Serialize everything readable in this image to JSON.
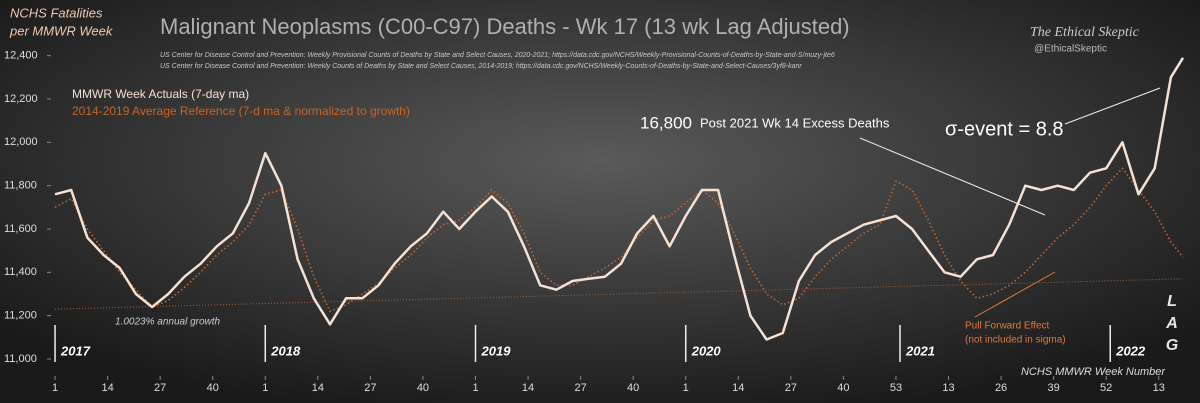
{
  "chart_data": {
    "type": "line",
    "title": "Malignant Neoplasms (C00-C97) Deaths - Wk 17 (13 wk Lag Adjusted)",
    "y_title": [
      "NCHS Fatalities",
      "per MMWR Week"
    ],
    "x_title": "NCHS MMWR Week Number",
    "sources": [
      "US Center for Disease Control and Prevention: Weekly  Provisional Counts of Deaths by State and Select Causes, 2020-2021; https://data.cdc.gov/NCHS/Weekly-Provisional-Counts-of-Deaths-by-State-and-S/muzy-jte6",
      "US Center for Disease Control and Prevention: Weekly  Counts of Deaths by State and Select Causes, 2014-2019; https://data.cdc.gov/NCHS/Weekly-Counts-of-Deaths-by-State-and-Select-Causes/3yf8-kanr"
    ],
    "brand": [
      "The Ethical Skeptic",
      "@EthicalSkeptic"
    ],
    "annotations": {
      "sigma": "σ-event = 8.8",
      "excess_value": "16,800",
      "excess_text": "Post 2021 Wk 14 Excess Deaths",
      "pull_forward": [
        "Pull Forward Effect",
        "(not included in sigma)"
      ],
      "lag": [
        "L",
        "A",
        "G"
      ]
    },
    "trend": {
      "label": "1.0023% annual growth",
      "x": [
        1,
        280
      ],
      "values": [
        11230,
        11370
      ]
    },
    "years": [
      {
        "label": "2017",
        "x": 1
      },
      {
        "label": "2018",
        "x": 53
      },
      {
        "label": "2019",
        "x": 105
      },
      {
        "label": "2020",
        "x": 157
      },
      {
        "label": "2021",
        "x": 210
      },
      {
        "label": "2022",
        "x": 262
      }
    ],
    "x": [
      1,
      5,
      9,
      13,
      17,
      21,
      25,
      29,
      33,
      37,
      41,
      45,
      49,
      53,
      57,
      61,
      65,
      69,
      73,
      77,
      81,
      85,
      89,
      93,
      97,
      101,
      105,
      109,
      113,
      117,
      121,
      125,
      129,
      133,
      137,
      141,
      145,
      149,
      153,
      157,
      161,
      165,
      169,
      173,
      177,
      181,
      185,
      189,
      193,
      197,
      201,
      205,
      209,
      213,
      217,
      221,
      225,
      229,
      233,
      237,
      241,
      245,
      249,
      253,
      257,
      261,
      265,
      269,
      273,
      277,
      280
    ],
    "series": [
      {
        "name": "MMWR Week Actuals (7-day ma)",
        "color": "#f6e2d4",
        "values": [
          11760,
          11780,
          11560,
          11480,
          11420,
          11300,
          11240,
          11300,
          11380,
          11440,
          11520,
          11580,
          11720,
          11950,
          11800,
          11460,
          11280,
          11160,
          11280,
          11280,
          11340,
          11440,
          11520,
          11580,
          11680,
          11600,
          11680,
          11750,
          11680,
          11520,
          11340,
          11320,
          11360,
          11370,
          11380,
          11440,
          11580,
          11660,
          11520,
          11660,
          11780,
          11780,
          11480,
          11200,
          11090,
          11120,
          11360,
          11480,
          11540,
          11580,
          11620,
          11640,
          11660,
          11600,
          11500,
          11400,
          11380,
          11460,
          11480,
          11620,
          11800,
          11780,
          11800,
          11780,
          11860,
          11880,
          12000,
          11760,
          11880,
          12300,
          12390
        ]
      },
      {
        "name": "2014-2019  Average Reference (7-d ma & normalized to growth)",
        "color": "#c8642a",
        "values": [
          11700,
          11740,
          11600,
          11500,
          11400,
          11320,
          11240,
          11270,
          11330,
          11400,
          11480,
          11540,
          11620,
          11760,
          11780,
          11600,
          11380,
          11220,
          11250,
          11300,
          11350,
          11420,
          11480,
          11560,
          11620,
          11640,
          11700,
          11780,
          11720,
          11580,
          11400,
          11340,
          11340,
          11380,
          11420,
          11470,
          11560,
          11640,
          11660,
          11720,
          11780,
          11720,
          11580,
          11420,
          11300,
          11250,
          11280,
          11380,
          11460,
          11520,
          11580,
          11620,
          11820,
          11780,
          11640,
          11480,
          11360,
          11280,
          11300,
          11340,
          11400,
          11480,
          11560,
          11620,
          11700,
          11800,
          11880,
          11780,
          11680,
          11540,
          11470
        ]
      }
    ],
    "xlim": [
      0,
      280
    ],
    "ylim": [
      11000,
      12500
    ],
    "yticks": [
      {
        "value": 11000,
        "label": "11,000"
      },
      {
        "value": 11200,
        "label": "11,200"
      },
      {
        "value": 11400,
        "label": "11,400"
      },
      {
        "value": 11600,
        "label": "11,600"
      },
      {
        "value": 11800,
        "label": "11,800"
      },
      {
        "value": 12000,
        "label": "12,000"
      },
      {
        "value": 12200,
        "label": "12,200"
      },
      {
        "value": 12400,
        "label": "12,400"
      }
    ],
    "xticks": [
      1,
      14,
      27,
      40,
      {
        "value": 53,
        "label": "1"
      },
      {
        "value": 66,
        "label": "14"
      },
      {
        "value": 79,
        "label": "27"
      },
      {
        "value": 92,
        "label": "40"
      },
      {
        "value": 105,
        "label": "1"
      },
      {
        "value": 118,
        "label": "14"
      },
      {
        "value": 131,
        "label": "27"
      },
      {
        "value": 144,
        "label": "40"
      },
      {
        "value": 157,
        "label": "1"
      },
      {
        "value": 170,
        "label": "14"
      },
      {
        "value": 183,
        "label": "27"
      },
      {
        "value": 196,
        "label": "40"
      },
      {
        "value": 209,
        "label": "53"
      },
      {
        "value": 222,
        "label": "13"
      },
      {
        "value": 235,
        "label": "26"
      },
      {
        "value": 248,
        "label": "39"
      },
      {
        "value": 261,
        "label": "52"
      },
      {
        "value": 274,
        "label": "13"
      }
    ]
  }
}
